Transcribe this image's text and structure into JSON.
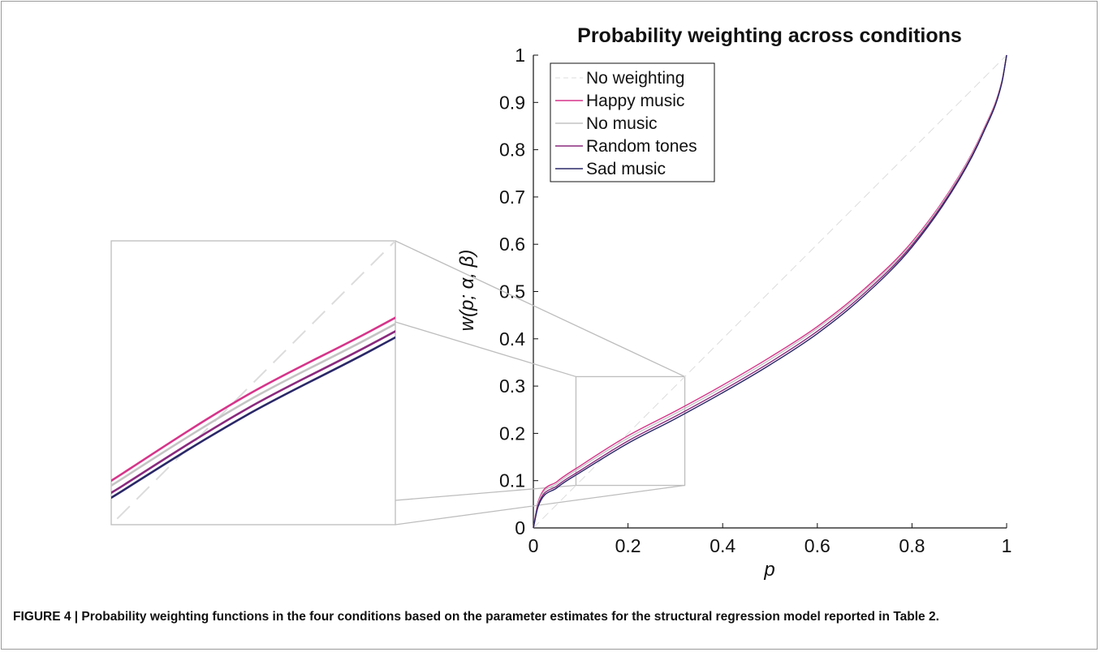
{
  "caption": "FIGURE 4 | Probability weighting functions in the four conditions based on the parameter estimates for the structural regression model reported in Table 2.",
  "chart_data": {
    "type": "line",
    "title": "Probability weighting across conditions",
    "xlabel": "p",
    "ylabel": "w(p; α, β)",
    "xlim": [
      0,
      1
    ],
    "ylim": [
      0,
      1
    ],
    "xticks": [
      "0",
      "0.2",
      "0.4",
      "0.6",
      "0.8",
      "1"
    ],
    "yticks": [
      "0",
      "0.1",
      "0.2",
      "0.3",
      "0.4",
      "0.5",
      "0.6",
      "0.7",
      "0.8",
      "0.9",
      "1"
    ],
    "grid": false,
    "legend_position": "top-left",
    "x": [
      0,
      0.01,
      0.05,
      0.1,
      0.2,
      0.3,
      0.4,
      0.5,
      0.6,
      0.7,
      0.8,
      0.9,
      0.95,
      0.99,
      1
    ],
    "series": [
      {
        "name": "No weighting",
        "color": "#dcdcdc",
        "dashed": true,
        "values": [
          0,
          0.01,
          0.05,
          0.1,
          0.2,
          0.3,
          0.4,
          0.5,
          0.6,
          0.7,
          0.8,
          0.9,
          0.95,
          0.99,
          1
        ]
      },
      {
        "name": "Happy music",
        "color": "#d6348a",
        "dashed": false,
        "values": [
          0,
          0.055,
          0.098,
          0.132,
          0.195,
          0.247,
          0.302,
          0.361,
          0.426,
          0.506,
          0.605,
          0.745,
          0.84,
          0.945,
          1
        ]
      },
      {
        "name": "No music",
        "color": "#c4c4c4",
        "dashed": false,
        "values": [
          0,
          0.052,
          0.094,
          0.128,
          0.19,
          0.242,
          0.297,
          0.356,
          0.422,
          0.502,
          0.602,
          0.743,
          0.838,
          0.944,
          1
        ]
      },
      {
        "name": "Random tones",
        "color": "#8a2a7e",
        "dashed": false,
        "values": [
          0,
          0.048,
          0.089,
          0.122,
          0.184,
          0.236,
          0.291,
          0.35,
          0.416,
          0.497,
          0.598,
          0.74,
          0.836,
          0.943,
          1
        ]
      },
      {
        "name": "Sad music",
        "color": "#2a2868",
        "dashed": false,
        "values": [
          0,
          0.045,
          0.085,
          0.118,
          0.179,
          0.231,
          0.286,
          0.345,
          0.411,
          0.492,
          0.594,
          0.737,
          0.834,
          0.942,
          1
        ]
      }
    ],
    "annotations": [
      {
        "type": "zoom-inset",
        "x_range": [
          0.09,
          0.32
        ],
        "y_range": [
          0.09,
          0.32
        ]
      }
    ]
  }
}
